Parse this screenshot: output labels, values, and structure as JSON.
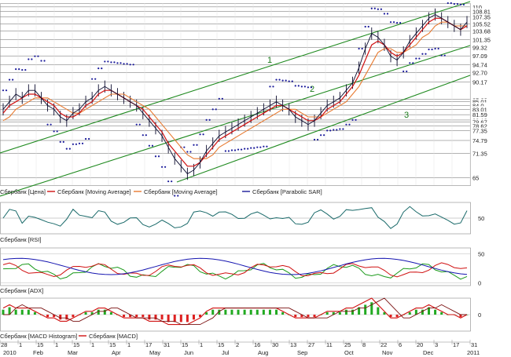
{
  "chart_data": {
    "type": "line",
    "title": "",
    "x_ticks": [
      "28",
      "2010",
      "Feb",
      "Mar",
      "Apr",
      "May",
      "Jun",
      "Jul",
      "Aug",
      "Sep",
      "Oct",
      "Nov",
      "Dec",
      "2011"
    ],
    "x_tick_days": [
      "28",
      "1",
      "15",
      "1",
      "15",
      "1",
      "15",
      "1",
      "17",
      "31",
      "15",
      "1",
      "15",
      "2",
      "16",
      "30",
      "13",
      "27",
      "11",
      "25",
      "8",
      "22",
      "6",
      "20",
      "3",
      "17",
      "31"
    ],
    "price_panel": {
      "y_ticks": [
        "110",
        "108.81",
        "107.35",
        "105.52",
        "103.68",
        "101.35",
        "99.32",
        "97.09",
        "94.74",
        "92.70",
        "90.17",
        "85.60",
        "85.01",
        "84.0",
        "83.01",
        "81.59",
        "80.18",
        "79.67",
        "78.62",
        "77.35",
        "74.79",
        "71.35",
        "65"
      ],
      "y_range": [
        63,
        111
      ],
      "legend": [
        "Сбербанк [Цена]",
        "Сбербанк [Moving Average]",
        "Сбербанк [Moving Average]",
        "Сбербанк [Parabolic SAR]"
      ],
      "channel_labels": [
        "1",
        "2",
        "3"
      ],
      "series_values": {
        "price": [
          83,
          85,
          87,
          86,
          88,
          88,
          86,
          84,
          83,
          81,
          80,
          82,
          83,
          85,
          86,
          88,
          89,
          88,
          87,
          86,
          85,
          84,
          82,
          80,
          78,
          76,
          73,
          70,
          68,
          66,
          67,
          69,
          72,
          74,
          76,
          77,
          78,
          79,
          80,
          81,
          82,
          83,
          84,
          85,
          84,
          83,
          81,
          80,
          79,
          80,
          82,
          84,
          85,
          86,
          88,
          90,
          94,
          99,
          103,
          102,
          100,
          97,
          96,
          98,
          101,
          103,
          105,
          107,
          108,
          107,
          106,
          105,
          104,
          106
        ],
        "ma_fast": [
          82,
          84,
          85,
          86,
          87,
          87,
          86,
          85,
          84,
          82,
          81,
          81,
          82,
          84,
          85,
          87,
          88,
          88,
          87,
          86,
          85,
          84,
          83,
          81,
          79,
          77,
          74,
          72,
          70,
          68,
          68,
          69,
          71,
          73,
          75,
          76,
          77,
          78,
          79,
          80,
          81,
          82,
          83,
          84,
          84,
          83,
          82,
          81,
          80,
          80,
          81,
          83,
          84,
          85,
          87,
          89,
          92,
          96,
          100,
          101,
          100,
          98,
          97,
          98,
          100,
          102,
          104,
          106,
          107,
          107,
          106,
          105,
          104,
          105
        ],
        "ma_slow": [
          80,
          81,
          83,
          84,
          85,
          86,
          86,
          86,
          85,
          84,
          83,
          82,
          82,
          83,
          84,
          85,
          86,
          87,
          87,
          87,
          86,
          85,
          84,
          83,
          81,
          79,
          77,
          75,
          73,
          71,
          70,
          70,
          70,
          71,
          73,
          74,
          75,
          76,
          77,
          78,
          79,
          80,
          81,
          82,
          83,
          83,
          83,
          82,
          81,
          81,
          81,
          82,
          83,
          84,
          85,
          87,
          89,
          92,
          95,
          98,
          99,
          99,
          98,
          98,
          99,
          100,
          102,
          103,
          105,
          106,
          106,
          105,
          105,
          105
        ]
      }
    },
    "rsi_panel": {
      "label": "Сбербанк [RSI]",
      "y_ticks": [
        "50"
      ],
      "y_range": [
        20,
        80
      ]
    },
    "adx_panel": {
      "label": "Сбербанк [ADX]",
      "y_ticks": [
        "50",
        "0"
      ],
      "y_range": [
        -5,
        60
      ]
    },
    "macd_panel": {
      "label": "Сбербанк [MACD Histogram]",
      "legend": [
        "Сбербанк [MACD Histogram]",
        "Сбербанк [MACD]"
      ],
      "y_ticks": [
        "0"
      ],
      "y_range": [
        -3,
        3
      ]
    },
    "colors": {
      "price": "#0b0b2e",
      "ma_fast": "#d01010",
      "ma_slow": "#e87a30",
      "sar": "#1a1a9a",
      "channel": "#1f8a1f",
      "rsi": "#1a6a6a",
      "adx_plus": "#1b9a1b",
      "adx_minus": "#d01010",
      "adx_line": "#1515b0",
      "hist_pos": "#22aa22",
      "hist_neg": "#dd2020"
    }
  }
}
